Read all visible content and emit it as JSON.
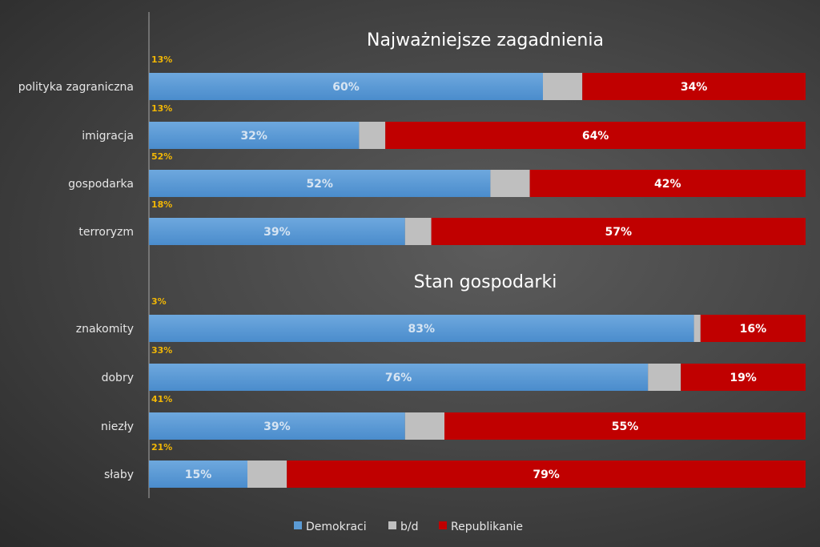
{
  "chart_data": {
    "type": "bar",
    "orientation": "horizontal",
    "stacked": true,
    "xlim": [
      0,
      100
    ],
    "grid": false,
    "legend_placement": "bottom",
    "colors": {
      "Demokraci": "#5b9bd5",
      "b/d": "#bfbfbf",
      "Republikanie": "#c00000",
      "share_label": "#f2b705"
    },
    "legend": [
      "Demokraci",
      "b/d",
      "Republikanie"
    ],
    "groups": [
      {
        "title": "Najważniejsze zagadnienia",
        "categories": [
          "polityka zagraniczna",
          "imigracja",
          "gospodarka",
          "terroryzm"
        ],
        "share_labels": [
          "13%",
          "13%",
          "52%",
          "18%"
        ],
        "series": [
          {
            "name": "Demokraci",
            "values": [
              60,
              32,
              52,
              39
            ]
          },
          {
            "name": "b/d",
            "values": [
              6,
              4,
              6,
              4
            ]
          },
          {
            "name": "Republikanie",
            "values": [
              34,
              64,
              42,
              57
            ]
          }
        ]
      },
      {
        "title": "Stan gospodarki",
        "categories": [
          "znakomity",
          "dobry",
          "niezły",
          "słaby"
        ],
        "share_labels": [
          "3%",
          "33%",
          "41%",
          "21%"
        ],
        "series": [
          {
            "name": "Demokraci",
            "values": [
              83,
              76,
              39,
              15
            ]
          },
          {
            "name": "b/d",
            "values": [
              1,
              5,
              6,
              6
            ]
          },
          {
            "name": "Republikanie",
            "values": [
              16,
              19,
              55,
              79
            ]
          }
        ]
      }
    ]
  }
}
